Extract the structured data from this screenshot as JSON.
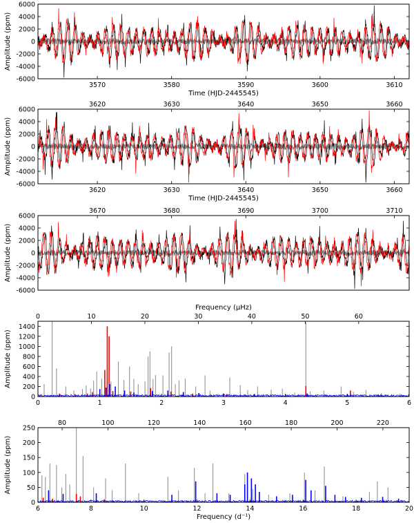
{
  "chart_data": [
    {
      "id": "lc1",
      "type": "line",
      "ylabel": "Amplitude (ppm)",
      "xlabel": "Time (HJD-2445545)",
      "xlim": [
        3562,
        3612
      ],
      "ylim": [
        -6000,
        6000
      ],
      "yticks": [
        -6000,
        -4000,
        -2000,
        0,
        2000,
        4000,
        6000
      ],
      "xticks_bottom": [
        3570,
        3580,
        3590,
        3600,
        3610
      ],
      "xticks_top": [],
      "series": [
        {
          "name": "residuals",
          "color": "#808080",
          "seed": 11
        },
        {
          "name": "observed",
          "color": "#000000",
          "seed": 21
        },
        {
          "name": "model",
          "color": "#ff0000",
          "seed": 31
        }
      ]
    },
    {
      "id": "lc2",
      "type": "line",
      "ylabel": "Amplitude (ppm)",
      "xlabel": "Time (HJD-2445545)",
      "xlim": [
        3612,
        3662
      ],
      "ylim": [
        -6000,
        6000
      ],
      "yticks": [
        -6000,
        -4000,
        -2000,
        0,
        2000,
        4000,
        6000
      ],
      "xticks_bottom": [
        3620,
        3630,
        3640,
        3650,
        3660
      ],
      "xticks_top": [
        3620,
        3630,
        3640,
        3650,
        3660
      ],
      "series": [
        {
          "name": "residuals",
          "color": "#808080",
          "seed": 12
        },
        {
          "name": "observed",
          "color": "#000000",
          "seed": 22
        },
        {
          "name": "model",
          "color": "#ff0000",
          "seed": 32
        }
      ]
    },
    {
      "id": "lc3",
      "type": "line",
      "ylabel": "Amplitude (ppm)",
      "xlabel": "",
      "xlim": [
        3662,
        3712
      ],
      "ylim": [
        -6000,
        6000
      ],
      "yticks": [
        -6000,
        -4000,
        -2000,
        0,
        2000,
        4000,
        6000
      ],
      "xticks_bottom": [],
      "xticks_top": [
        3670,
        3680,
        3690,
        3700,
        3710
      ],
      "series": [
        {
          "name": "residuals",
          "color": "#808080",
          "seed": 13
        },
        {
          "name": "observed",
          "color": "#000000",
          "seed": 23
        },
        {
          "name": "model",
          "color": "#ff0000",
          "seed": 33
        }
      ]
    },
    {
      "id": "sp1",
      "type": "bar",
      "ylabel": "Amplitude (ppm)",
      "xlabel_top": "Frequency (μHz)",
      "xlim": [
        0,
        6
      ],
      "ylim": [
        0,
        1500
      ],
      "yticks": [
        0,
        200,
        400,
        600,
        800,
        1000,
        1200,
        1400
      ],
      "xticks_bottom": [
        0,
        1,
        2,
        3,
        4,
        5,
        6
      ],
      "top_axis_scale": 11.574,
      "xticks_top": [
        0,
        10,
        20,
        30,
        40,
        50,
        60
      ],
      "peaks": {
        "gray": [
          [
            0.23,
            1500
          ],
          [
            0.3,
            560
          ],
          [
            0.1,
            250
          ],
          [
            0.45,
            200
          ],
          [
            0.58,
            120
          ],
          [
            0.72,
            150
          ],
          [
            0.78,
            220
          ],
          [
            0.85,
            160
          ],
          [
            0.9,
            320
          ],
          [
            0.95,
            500
          ],
          [
            1.03,
            360
          ],
          [
            1.12,
            500
          ],
          [
            1.18,
            300
          ],
          [
            1.3,
            700
          ],
          [
            1.39,
            330
          ],
          [
            1.48,
            600
          ],
          [
            1.55,
            350
          ],
          [
            1.62,
            250
          ],
          [
            1.73,
            300
          ],
          [
            1.78,
            800
          ],
          [
            1.81,
            900
          ],
          [
            1.86,
            350
          ],
          [
            1.9,
            430
          ],
          [
            2.02,
            420
          ],
          [
            2.12,
            880
          ],
          [
            2.16,
            1000
          ],
          [
            2.22,
            250
          ],
          [
            2.28,
            320
          ],
          [
            2.38,
            360
          ],
          [
            2.55,
            200
          ],
          [
            2.7,
            420
          ],
          [
            2.78,
            120
          ],
          [
            3.1,
            380
          ],
          [
            3.27,
            230
          ],
          [
            3.39,
            130
          ],
          [
            3.55,
            200
          ],
          [
            3.77,
            140
          ],
          [
            3.95,
            160
          ],
          [
            4.15,
            80
          ],
          [
            4.33,
            1480
          ],
          [
            4.4,
            100
          ],
          [
            4.62,
            120
          ],
          [
            4.9,
            200
          ],
          [
            5.1,
            90
          ],
          [
            5.3,
            130
          ],
          [
            5.55,
            70
          ],
          [
            5.85,
            60
          ]
        ],
        "red": [
          [
            1.08,
            530
          ],
          [
            1.12,
            1400
          ],
          [
            1.15,
            1200
          ],
          [
            1.21,
            110
          ],
          [
            0.88,
            90
          ],
          [
            0.8,
            60
          ],
          [
            1.5,
            100
          ],
          [
            1.82,
            170
          ],
          [
            2.15,
            100
          ],
          [
            4.33,
            210
          ],
          [
            5.05,
            120
          ],
          [
            2.5,
            60
          ],
          [
            3.05,
            50
          ],
          [
            0.6,
            50
          ],
          [
            0.35,
            60
          ]
        ],
        "blue": [
          [
            1.16,
            250
          ],
          [
            1.1,
            180
          ],
          [
            1.25,
            200
          ],
          [
            1.0,
            150
          ],
          [
            1.4,
            120
          ],
          [
            1.55,
            80
          ],
          [
            1.85,
            110
          ],
          [
            2.1,
            120
          ],
          [
            2.35,
            90
          ],
          [
            2.6,
            70
          ],
          [
            3.0,
            60
          ],
          [
            3.5,
            50
          ],
          [
            4.0,
            40
          ],
          [
            4.35,
            60
          ],
          [
            5.0,
            50
          ],
          [
            5.5,
            40
          ],
          [
            5.9,
            30
          ]
        ]
      }
    },
    {
      "id": "sp2",
      "type": "bar",
      "ylabel": "Amplitude (ppm)",
      "xlabel": "Frequency (d⁻¹)",
      "xlim": [
        6,
        20
      ],
      "ylim": [
        0,
        250
      ],
      "yticks": [
        0,
        50,
        100,
        150,
        200,
        250
      ],
      "xticks_bottom": [
        6,
        8,
        10,
        12,
        14,
        16,
        18,
        20
      ],
      "top_axis_scale": 11.574,
      "xticks_top": [
        80,
        100,
        120,
        140,
        160,
        180,
        200,
        220
      ],
      "peaks": {
        "gray": [
          [
            6.15,
            90
          ],
          [
            6.28,
            85
          ],
          [
            6.45,
            130
          ],
          [
            6.7,
            125
          ],
          [
            6.9,
            50
          ],
          [
            7.05,
            95
          ],
          [
            7.2,
            60
          ],
          [
            7.45,
            250
          ],
          [
            7.7,
            155
          ],
          [
            8.1,
            50
          ],
          [
            8.55,
            80
          ],
          [
            8.8,
            40
          ],
          [
            9.3,
            130
          ],
          [
            9.8,
            30
          ],
          [
            10.9,
            85
          ],
          [
            11.3,
            40
          ],
          [
            11.9,
            115
          ],
          [
            12.3,
            30
          ],
          [
            12.6,
            130
          ],
          [
            13.2,
            30
          ],
          [
            13.8,
            95
          ],
          [
            14.1,
            45
          ],
          [
            14.7,
            25
          ],
          [
            15.5,
            30
          ],
          [
            16.05,
            100
          ],
          [
            16.45,
            40
          ],
          [
            16.8,
            120
          ],
          [
            17.5,
            20
          ],
          [
            18.5,
            35
          ],
          [
            18.8,
            70
          ],
          [
            19.2,
            50
          ]
        ],
        "blue": [
          [
            6.4,
            40
          ],
          [
            6.95,
            28
          ],
          [
            8.2,
            30
          ],
          [
            11.05,
            25
          ],
          [
            11.95,
            70
          ],
          [
            12.75,
            30
          ],
          [
            13.25,
            25
          ],
          [
            13.8,
            60
          ],
          [
            13.9,
            100
          ],
          [
            14.05,
            80
          ],
          [
            14.2,
            60
          ],
          [
            14.35,
            35
          ],
          [
            15.0,
            20
          ],
          [
            15.6,
            25
          ],
          [
            16.1,
            75
          ],
          [
            16.3,
            40
          ],
          [
            16.85,
            55
          ],
          [
            17.2,
            25
          ],
          [
            17.6,
            18
          ],
          [
            18.2,
            15
          ],
          [
            19.0,
            18
          ],
          [
            19.6,
            12
          ]
        ],
        "red": [
          [
            6.2,
            15
          ],
          [
            7.45,
            28
          ],
          [
            7.6,
            20
          ],
          [
            6.55,
            12
          ],
          [
            8.5,
            10
          ]
        ]
      }
    }
  ]
}
